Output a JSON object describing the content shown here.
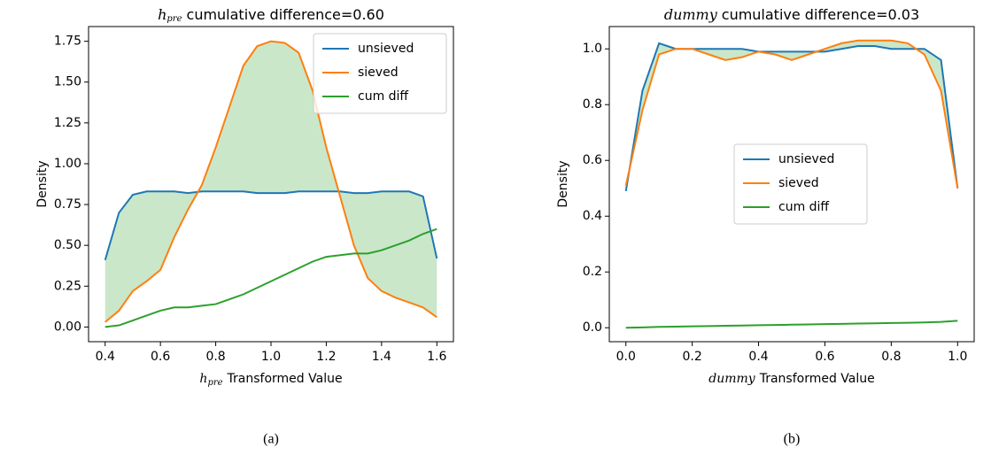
{
  "chart_data": [
    {
      "type": "line",
      "caption": "(a)",
      "title": {
        "symbol": "h",
        "subscript": "pre",
        "text": "cumulative difference=0.60"
      },
      "xlabel": {
        "symbol": "h",
        "subscript": "pre",
        "text": "Transformed Value"
      },
      "ylabel": "Density",
      "x": [
        0.4,
        0.45,
        0.5,
        0.55,
        0.6,
        0.65,
        0.7,
        0.75,
        0.8,
        0.85,
        0.9,
        0.95,
        1.0,
        1.05,
        1.1,
        1.15,
        1.2,
        1.25,
        1.3,
        1.35,
        1.4,
        1.45,
        1.5,
        1.55,
        1.6
      ],
      "series": [
        {
          "name": "unsieved",
          "color": "#1f77b4",
          "values": [
            0.41,
            0.7,
            0.81,
            0.83,
            0.83,
            0.83,
            0.82,
            0.83,
            0.83,
            0.83,
            0.83,
            0.82,
            0.82,
            0.82,
            0.83,
            0.83,
            0.83,
            0.83,
            0.82,
            0.82,
            0.83,
            0.83,
            0.83,
            0.8,
            0.42
          ]
        },
        {
          "name": "sieved",
          "color": "#ff7f0e",
          "values": [
            0.03,
            0.1,
            0.22,
            0.28,
            0.35,
            0.55,
            0.72,
            0.87,
            1.1,
            1.35,
            1.6,
            1.72,
            1.75,
            1.74,
            1.68,
            1.45,
            1.1,
            0.8,
            0.5,
            0.3,
            0.22,
            0.18,
            0.15,
            0.12,
            0.06
          ]
        },
        {
          "name": "cum diff",
          "color": "#2ca02c",
          "values": [
            0.0,
            0.01,
            0.04,
            0.07,
            0.1,
            0.12,
            0.12,
            0.13,
            0.14,
            0.17,
            0.2,
            0.24,
            0.28,
            0.32,
            0.36,
            0.4,
            0.43,
            0.44,
            0.45,
            0.45,
            0.47,
            0.5,
            0.53,
            0.57,
            0.6
          ]
        }
      ],
      "fill_color": "#2ca02c",
      "xlim": [
        0.34,
        1.66
      ],
      "ylim": [
        -0.09,
        1.84
      ],
      "xticks": [
        0.4,
        0.6,
        0.8,
        {
          "value": 1,
          "label": "1.0"
        },
        1.2,
        1.4,
        1.6
      ],
      "yticks": [
        {
          "value": 0,
          "label": "0.00"
        },
        {
          "value": 0.25,
          "label": "0.25"
        },
        {
          "value": 0.5,
          "label": "0.50"
        },
        {
          "value": 0.75,
          "label": "0.75"
        },
        {
          "value": 1,
          "label": "1.00"
        },
        {
          "value": 1.25,
          "label": "1.25"
        },
        {
          "value": 1.5,
          "label": "1.50"
        },
        {
          "value": 1.75,
          "label": "1.75"
        }
      ],
      "legend": "upper right"
    },
    {
      "type": "line",
      "caption": "(b)",
      "title": {
        "symbol": "dummy",
        "text": "cumulative difference=0.03"
      },
      "xlabel": {
        "symbol": "dummy",
        "text": "Transformed Value"
      },
      "ylabel": "Density",
      "x": [
        0,
        0.05,
        0.1,
        0.15,
        0.2,
        0.25,
        0.3,
        0.35,
        0.4,
        0.45,
        0.5,
        0.55,
        0.6,
        0.65,
        0.7,
        0.75,
        0.8,
        0.85,
        0.9,
        0.95,
        1.0
      ],
      "series": [
        {
          "name": "unsieved",
          "color": "#1f77b4",
          "values": [
            0.49,
            0.85,
            1.02,
            1.0,
            1.0,
            1.0,
            1.0,
            1.0,
            0.99,
            0.99,
            0.99,
            0.99,
            0.99,
            1.0,
            1.01,
            1.01,
            1.0,
            1.0,
            1.0,
            0.96,
            0.5
          ]
        },
        {
          "name": "sieved",
          "color": "#ff7f0e",
          "values": [
            0.51,
            0.78,
            0.98,
            1.0,
            1.0,
            0.98,
            0.96,
            0.97,
            0.99,
            0.98,
            0.96,
            0.98,
            1.0,
            1.02,
            1.03,
            1.03,
            1.03,
            1.02,
            0.98,
            0.85,
            0.5
          ]
        },
        {
          "name": "cum diff",
          "color": "#2ca02c",
          "values": [
            0.0,
            0.001,
            0.003,
            0.004,
            0.005,
            0.006,
            0.007,
            0.008,
            0.009,
            0.01,
            0.011,
            0.012,
            0.013,
            0.014,
            0.015,
            0.016,
            0.017,
            0.018,
            0.019,
            0.021,
            0.025
          ]
        }
      ],
      "fill_color": "#2ca02c",
      "xlim": [
        -0.05,
        1.05
      ],
      "ylim": [
        -0.05,
        1.08
      ],
      "xticks": [
        {
          "value": 0,
          "label": "0.0"
        },
        0.2,
        0.4,
        0.6,
        0.8,
        {
          "value": 1,
          "label": "1.0"
        }
      ],
      "yticks": [
        {
          "value": 0,
          "label": "0.0"
        },
        0.2,
        0.4,
        0.6,
        0.8,
        {
          "value": 1,
          "label": "1.0"
        }
      ],
      "legend": "center"
    }
  ]
}
